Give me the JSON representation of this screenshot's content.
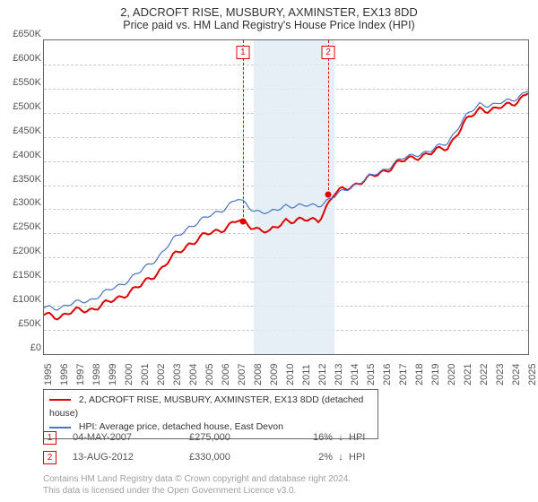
{
  "title_line1": "2, ADCROFT RISE, MUSBURY, AXMINSTER, EX13 8DD",
  "title_line2": "Price paid vs. HM Land Registry's House Price Index (HPI)",
  "chart": {
    "type": "line",
    "background_color": "#ffffff",
    "grid_color": "#c8c8c8",
    "border_color": "#666666",
    "y": {
      "label_fontsize": 11,
      "min": 0,
      "max": 650000,
      "step": 50000,
      "ticks": [
        "£0",
        "£50K",
        "£100K",
        "£150K",
        "£200K",
        "£250K",
        "£300K",
        "£350K",
        "£400K",
        "£450K",
        "£500K",
        "£550K",
        "£600K",
        "£650K"
      ]
    },
    "x": {
      "label_fontsize": 11,
      "min": 1995,
      "max": 2025,
      "step": 1,
      "ticks": [
        "1995",
        "1996",
        "1997",
        "1998",
        "1999",
        "2000",
        "2001",
        "2002",
        "2003",
        "2004",
        "2005",
        "2006",
        "2007",
        "2008",
        "2009",
        "2010",
        "2011",
        "2012",
        "2013",
        "2014",
        "2015",
        "2016",
        "2017",
        "2018",
        "2019",
        "2020",
        "2021",
        "2022",
        "2023",
        "2024",
        "2025"
      ]
    },
    "shaded_band": {
      "from_year": 2008,
      "to_year": 2013,
      "color": "#e3ecf4"
    },
    "series": [
      {
        "name": "2, ADCROFT RISE, MUSBURY, AXMINSTER, EX13 8DD (detached house)",
        "color": "#e00000",
        "line_width": 2,
        "data": [
          [
            1995,
            80000
          ],
          [
            1996,
            80000
          ],
          [
            1997,
            88000
          ],
          [
            1998,
            95000
          ],
          [
            1999,
            105000
          ],
          [
            2000,
            125000
          ],
          [
            2001,
            140000
          ],
          [
            2002,
            170000
          ],
          [
            2003,
            200000
          ],
          [
            2004,
            230000
          ],
          [
            2005,
            245000
          ],
          [
            2006,
            260000
          ],
          [
            2007,
            275000
          ],
          [
            2008,
            265000
          ],
          [
            2009,
            250000
          ],
          [
            2010,
            280000
          ],
          [
            2011,
            275000
          ],
          [
            2012,
            280000
          ],
          [
            2013,
            330000
          ],
          [
            2014,
            350000
          ],
          [
            2015,
            360000
          ],
          [
            2016,
            380000
          ],
          [
            2017,
            395000
          ],
          [
            2018,
            410000
          ],
          [
            2019,
            415000
          ],
          [
            2020,
            430000
          ],
          [
            2021,
            475000
          ],
          [
            2022,
            510000
          ],
          [
            2023,
            505000
          ],
          [
            2024,
            520000
          ],
          [
            2025,
            540000
          ]
        ]
      },
      {
        "name": "HPI: Average price, detached house, East Devon",
        "color": "#4a74c4",
        "line_width": 1.2,
        "data": [
          [
            1995,
            95000
          ],
          [
            1996,
            98000
          ],
          [
            1997,
            105000
          ],
          [
            1998,
            115000
          ],
          [
            1999,
            130000
          ],
          [
            2000,
            150000
          ],
          [
            2001,
            170000
          ],
          [
            2002,
            200000
          ],
          [
            2003,
            235000
          ],
          [
            2004,
            265000
          ],
          [
            2005,
            280000
          ],
          [
            2006,
            300000
          ],
          [
            2007,
            320000
          ],
          [
            2008,
            300000
          ],
          [
            2009,
            290000
          ],
          [
            2010,
            310000
          ],
          [
            2011,
            305000
          ],
          [
            2012,
            310000
          ],
          [
            2013,
            325000
          ],
          [
            2014,
            348000
          ],
          [
            2015,
            362000
          ],
          [
            2016,
            382000
          ],
          [
            2017,
            400000
          ],
          [
            2018,
            415000
          ],
          [
            2019,
            420000
          ],
          [
            2020,
            440000
          ],
          [
            2021,
            485000
          ],
          [
            2022,
            520000
          ],
          [
            2023,
            515000
          ],
          [
            2024,
            528000
          ],
          [
            2025,
            545000
          ]
        ]
      }
    ],
    "markers": [
      {
        "n": 1,
        "year": 2007.33,
        "price": 275000
      },
      {
        "n": 2,
        "year": 2012.62,
        "price": 330000
      }
    ]
  },
  "legend": {
    "items": [
      {
        "color": "#e00000",
        "label": "2, ADCROFT RISE, MUSBURY, AXMINSTER, EX13 8DD (detached house)"
      },
      {
        "color": "#4a74c4",
        "label": "HPI: Average price, detached house, East Devon"
      }
    ]
  },
  "sales": [
    {
      "n": "1",
      "date": "04-MAY-2007",
      "price": "£275,000",
      "pct": "16%",
      "arrow": "↓",
      "hpi": "HPI"
    },
    {
      "n": "2",
      "date": "13-AUG-2012",
      "price": "£330,000",
      "pct": "2%",
      "arrow": "↓",
      "hpi": "HPI"
    }
  ],
  "footer_line1": "Contains HM Land Registry data © Crown copyright and database right 2024.",
  "footer_line2": "This data is licensed under the Open Government Licence v3.0."
}
